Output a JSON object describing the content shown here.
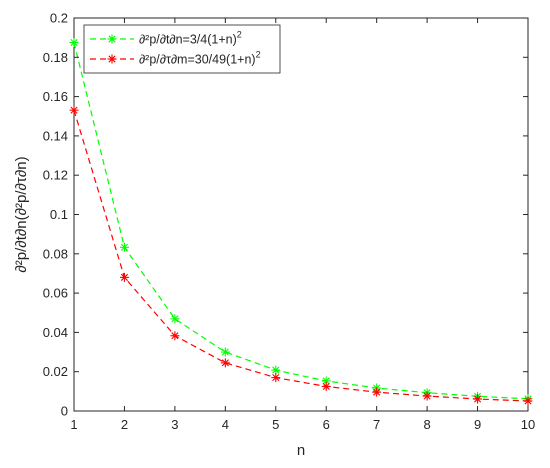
{
  "chart_data": {
    "type": "line",
    "x": [
      1,
      2,
      3,
      4,
      5,
      6,
      7,
      8,
      9,
      10
    ],
    "series": [
      {
        "name": "∂²p/∂t∂n=3/4(1+n)²",
        "legend_main": "∂²p/∂t∂n=3/4(1+n)",
        "legend_sup": "2",
        "color": "#00ff00",
        "values": [
          0.1875,
          0.0833,
          0.0469,
          0.03,
          0.0208,
          0.0153,
          0.0117,
          0.0093,
          0.0075,
          0.0062
        ]
      },
      {
        "name": "∂²p/∂τ∂m=30/49(1+n)²",
        "legend_main": "∂²p/∂τ∂m=30/49(1+n)",
        "legend_sup": "2",
        "color": "#ff0000",
        "values": [
          0.1531,
          0.068,
          0.0383,
          0.0245,
          0.017,
          0.0125,
          0.0096,
          0.0076,
          0.0061,
          0.0051
        ]
      }
    ],
    "xlabel": "n",
    "ylabel": "∂²p/∂t∂n(∂²p/∂τ∂n)",
    "xlim": [
      1,
      10
    ],
    "ylim": [
      0,
      0.2
    ],
    "xticks": [
      "1",
      "2",
      "3",
      "4",
      "5",
      "6",
      "7",
      "8",
      "9",
      "10"
    ],
    "yticks": [
      "0",
      "0.02",
      "0.04",
      "0.06",
      "0.08",
      "0.1",
      "0.12",
      "0.14",
      "0.16",
      "0.18",
      "0.2"
    ],
    "grid": false,
    "legend_position": "top-left",
    "line_style": "dashed",
    "marker": "asterisk"
  }
}
